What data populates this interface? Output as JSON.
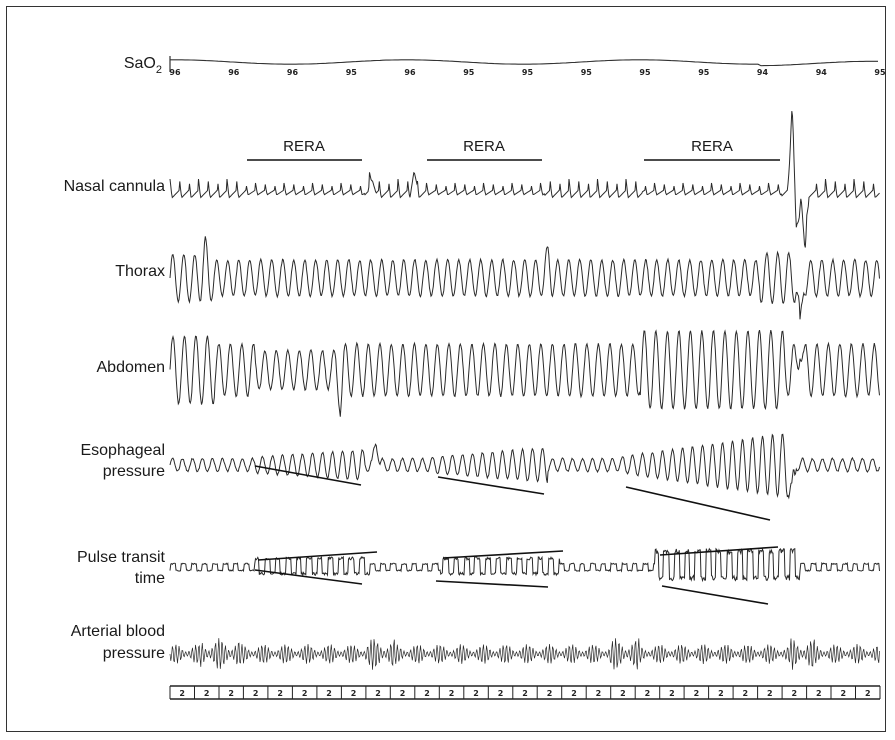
{
  "chart_data": {
    "type": "line",
    "title": "",
    "channels": [
      {
        "name": "SaO2",
        "label_main": "SaO",
        "label_sub": "2"
      },
      {
        "name": "Nasal cannula",
        "lines": [
          "Nasal cannula"
        ]
      },
      {
        "name": "Thorax",
        "lines": [
          "Thorax"
        ]
      },
      {
        "name": "Abdomen",
        "lines": [
          "Abdomen"
        ]
      },
      {
        "name": "Esophageal pressure",
        "lines": [
          "Esophageal",
          "pressure"
        ]
      },
      {
        "name": "Pulse transit time",
        "lines": [
          "Pulse transit",
          "time"
        ]
      },
      {
        "name": "Arterial blood pressure",
        "lines": [
          "Arterial blood",
          "pressure"
        ]
      }
    ],
    "sao2_values": [
      "96",
      "96",
      "96",
      "95",
      "96",
      "95",
      "95",
      "95",
      "95",
      "95",
      "94",
      "94",
      "95"
    ],
    "annotations": [
      {
        "text": "RERA",
        "segment": 1
      },
      {
        "text": "RERA",
        "segment": 2
      },
      {
        "text": "RERA",
        "segment": 3
      }
    ],
    "time_scale_label": "2",
    "time_scale_count": 29
  }
}
